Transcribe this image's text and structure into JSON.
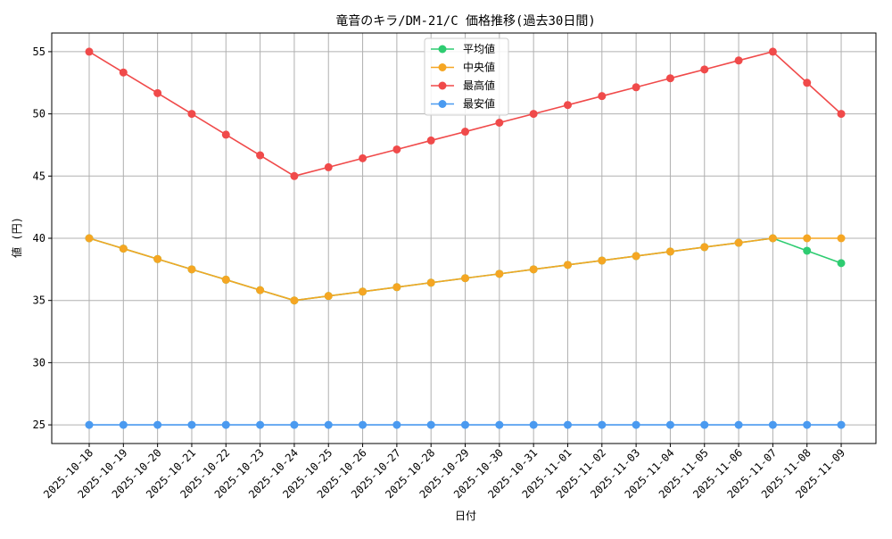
{
  "chart_data": {
    "type": "line",
    "title": "竜音のキラ/DM-21/C 価格推移(過去30日間)",
    "xlabel": "日付",
    "ylabel": "値 (円)",
    "ylim": [
      23.5,
      56.5
    ],
    "yticks": [
      25,
      30,
      35,
      40,
      45,
      50,
      55
    ],
    "grid": true,
    "legend_position": "top-center",
    "categories": [
      "2025-10-18",
      "2025-10-19",
      "2025-10-20",
      "2025-10-21",
      "2025-10-22",
      "2025-10-23",
      "2025-10-24",
      "2025-10-25",
      "2025-10-26",
      "2025-10-27",
      "2025-10-28",
      "2025-10-29",
      "2025-10-30",
      "2025-10-31",
      "2025-11-01",
      "2025-11-02",
      "2025-11-03",
      "2025-11-04",
      "2025-11-05",
      "2025-11-06",
      "2025-11-07",
      "2025-11-08",
      "2025-11-09"
    ],
    "series": [
      {
        "name": "平均値",
        "color": "#2ecc71",
        "values": [
          40,
          39.17,
          38.33,
          37.5,
          36.67,
          35.83,
          35,
          35.36,
          35.71,
          36.07,
          36.43,
          36.79,
          37.14,
          37.5,
          37.86,
          38.21,
          38.57,
          38.93,
          39.29,
          39.64,
          40,
          39,
          38
        ]
      },
      {
        "name": "中央値",
        "color": "#f5a623",
        "values": [
          40,
          39.17,
          38.33,
          37.5,
          36.67,
          35.83,
          35,
          35.36,
          35.71,
          36.07,
          36.43,
          36.79,
          37.14,
          37.5,
          37.86,
          38.21,
          38.57,
          38.93,
          39.29,
          39.64,
          40,
          40,
          40
        ]
      },
      {
        "name": "最高値",
        "color": "#f04a4a",
        "values": [
          55,
          53.33,
          51.67,
          50,
          48.33,
          46.67,
          45,
          45.71,
          46.43,
          47.14,
          47.86,
          48.57,
          49.29,
          50,
          50.71,
          51.43,
          52.14,
          52.86,
          53.57,
          54.29,
          55,
          52.5,
          50
        ]
      },
      {
        "name": "最安値",
        "color": "#4a9af0",
        "values": [
          25,
          25,
          25,
          25,
          25,
          25,
          25,
          25,
          25,
          25,
          25,
          25,
          25,
          25,
          25,
          25,
          25,
          25,
          25,
          25,
          25,
          25,
          25
        ]
      }
    ],
    "draw_order": [
      3,
      2,
      0,
      1
    ]
  }
}
